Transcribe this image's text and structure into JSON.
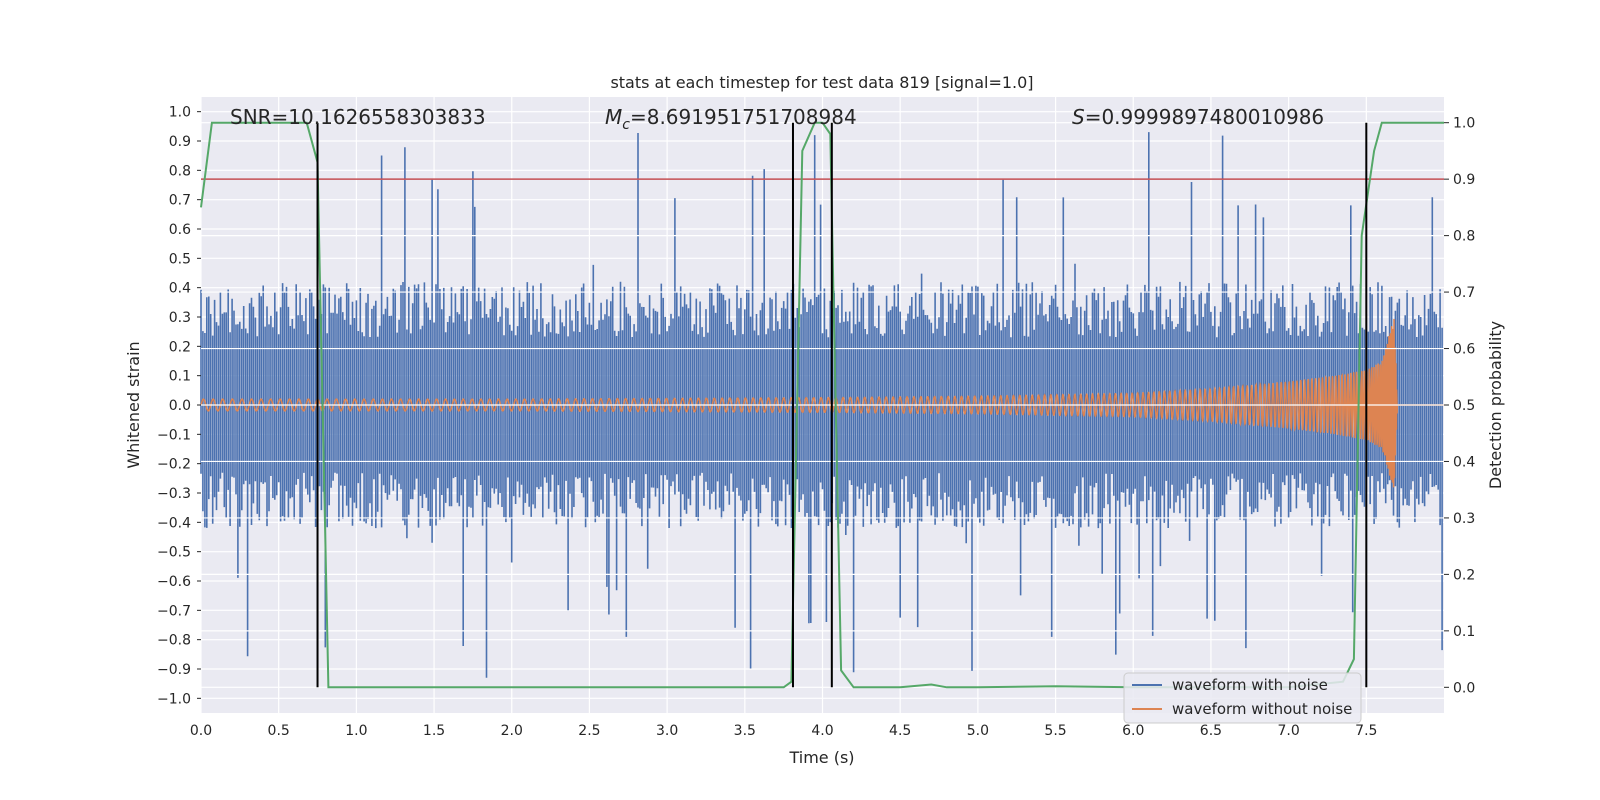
{
  "chart_data": {
    "type": "line",
    "title": "stats at each timestep for test data 819 [signal=1.0]",
    "xlabel": "Time (s)",
    "ylabel": "Whitened strain",
    "y2label": "Detection probability",
    "xlim": [
      0,
      8.0
    ],
    "ylim": [
      -1.05,
      1.05
    ],
    "y2lim": [
      -0.0455,
      1.0455
    ],
    "x_ticks": [
      "0.0",
      "0.5",
      "1.0",
      "1.5",
      "2.0",
      "2.5",
      "3.0",
      "3.5",
      "4.0",
      "4.5",
      "5.0",
      "5.5",
      "6.0",
      "6.5",
      "7.0",
      "7.5"
    ],
    "y_ticks": [
      "1.0",
      "0.9",
      "0.8",
      "0.7",
      "0.6",
      "0.5",
      "0.4",
      "0.3",
      "0.2",
      "0.1",
      "0.0",
      "−0.1",
      "−0.2",
      "−0.3",
      "−0.4",
      "−0.5",
      "−0.6",
      "−0.7",
      "−0.8",
      "−0.9",
      "−1.0"
    ],
    "y2_ticks": [
      "1.0",
      "0.9",
      "0.8",
      "0.7",
      "0.6",
      "0.5",
      "0.4",
      "0.3",
      "0.2",
      "0.1",
      "0.0"
    ],
    "grid": true,
    "legend_position": "lower-right",
    "annotations": {
      "snr": "SNR=10.1626558303833",
      "mc_symbol": "M",
      "mc_sub": "c",
      "mc_value": "=8.691951751708984",
      "s_symbol": "S",
      "s_value": "=0.9999897480010986"
    },
    "series": [
      {
        "name": "waveform with noise",
        "color": "#4c72b0",
        "kind": "noise",
        "typical_amplitude": 0.42,
        "peak_amplitude": 0.96
      },
      {
        "name": "waveform without noise",
        "color": "#dd8452",
        "kind": "chirp",
        "envelope_x": [
          0.0,
          2.0,
          4.0,
          5.0,
          6.0,
          6.5,
          7.0,
          7.3,
          7.5,
          7.6,
          7.68,
          7.7,
          8.0
        ],
        "envelope_y": [
          0.02,
          0.02,
          0.025,
          0.03,
          0.04,
          0.055,
          0.08,
          0.1,
          0.12,
          0.15,
          0.3,
          0.0,
          0.0
        ]
      },
      {
        "color": "#55a868",
        "axis": "right",
        "x": [
          0.0,
          0.07,
          0.1,
          0.3,
          0.5,
          0.68,
          0.75,
          0.82,
          1.0,
          2.0,
          3.0,
          3.75,
          3.8,
          3.87,
          3.95,
          4.0,
          4.05,
          4.07,
          4.12,
          4.2,
          4.5,
          4.7,
          4.8,
          5.0,
          5.5,
          6.0,
          7.0,
          7.35,
          7.42,
          7.47,
          7.55,
          7.6,
          8.0
        ],
        "y": [
          0.85,
          1.0,
          1.0,
          1.0,
          1.0,
          1.0,
          0.93,
          0.0,
          0.0,
          0.0,
          0.0,
          0.0,
          0.01,
          0.95,
          1.0,
          1.0,
          0.98,
          0.7,
          0.03,
          0.0,
          0.0,
          0.005,
          0.0,
          0.0,
          0.002,
          0.0,
          0.0,
          0.01,
          0.05,
          0.8,
          0.95,
          1.0,
          1.0
        ]
      }
    ],
    "threshold": {
      "y": 0.9,
      "axis": "right",
      "color": "#c44e52"
    },
    "vlines": [
      0.75,
      3.81,
      4.06,
      7.5
    ],
    "vline_range": [
      0.0,
      1.0
    ]
  }
}
